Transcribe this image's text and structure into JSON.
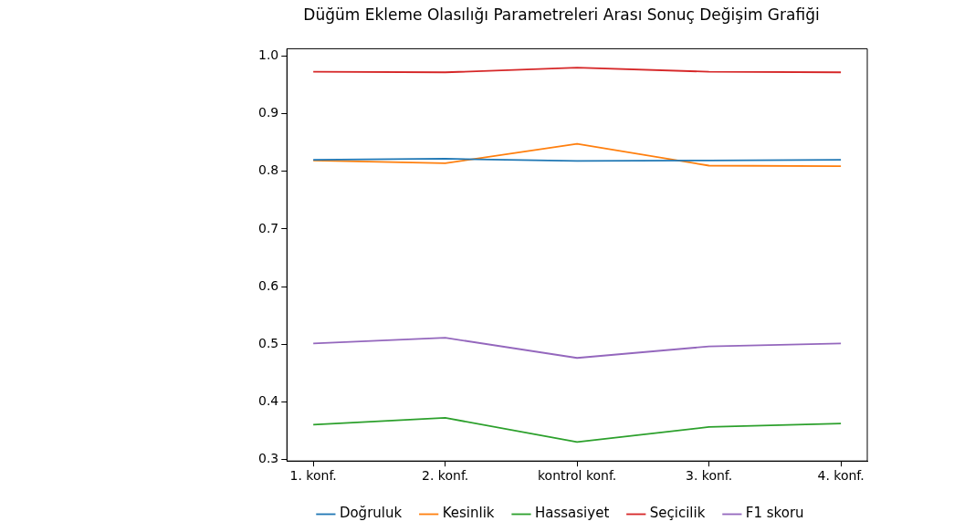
{
  "chart_data": {
    "type": "line",
    "title": "Düğüm Ekleme Olasılığı Parametreleri Arası Sonuç Değişim Grafiği",
    "categories": [
      "1. konf.",
      "2. konf.",
      "kontrol konf.",
      "3. konf.",
      "4. konf."
    ],
    "series": [
      {
        "name": "Doğruluk",
        "color": "#1f77b4",
        "values": [
          0.82,
          0.822,
          0.818,
          0.819,
          0.82
        ]
      },
      {
        "name": "Kesinlik",
        "color": "#ff7f0e",
        "values": [
          0.819,
          0.814,
          0.848,
          0.81,
          0.809
        ]
      },
      {
        "name": "Hassasiyet",
        "color": "#2ca02c",
        "values": [
          0.36,
          0.372,
          0.33,
          0.356,
          0.362
        ]
      },
      {
        "name": "Seçicilik",
        "color": "#d62728",
        "values": [
          0.973,
          0.972,
          0.98,
          0.973,
          0.972
        ]
      },
      {
        "name": "F1 skoru",
        "color": "#9467bd",
        "values": [
          0.501,
          0.511,
          0.476,
          0.496,
          0.501
        ]
      }
    ],
    "ylim": [
      0.297,
      1.013
    ],
    "yticks": [
      0.3,
      0.4,
      0.5,
      0.6,
      0.7,
      0.8,
      0.9,
      {
        "value": 1,
        "label": "1.0"
      }
    ],
    "grid": false,
    "legend": "bottom",
    "marker": "none",
    "line_style": "solid"
  }
}
